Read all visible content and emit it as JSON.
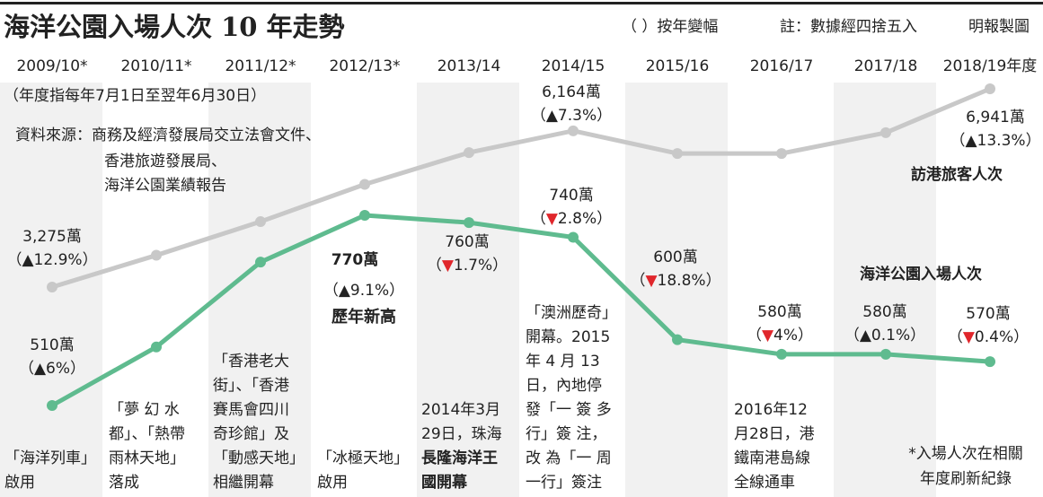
{
  "chart_data": {
    "type": "line",
    "title": "海洋公園入場人次 10 年走勢",
    "change_legend": "（ ）按年變幅",
    "note": "註：數據經四捨五入",
    "credit": "明報製圖",
    "period_note": "（年度指每年7月1日至翌年6月30日）",
    "source": [
      "資料來源：商務及經濟發展局交立法會文件、",
      "香港旅遊發展局、",
      "海洋公園業績報告"
    ],
    "categories": [
      "2009/10*",
      "2010/11*",
      "2011/12*",
      "2012/13*",
      "2013/14",
      "2014/15",
      "2015/16",
      "2016/17",
      "2017/18",
      "2018/19年度"
    ],
    "series": [
      {
        "name": "訪港旅客人次",
        "color": "#c8c8c8",
        "values": [
          3275,
          3863,
          4485,
          5175,
          5762,
          6164,
          5745,
          5745,
          6130,
          6941
        ],
        "value_labels": [
          "3,275萬",
          null,
          null,
          null,
          null,
          "6,164萬",
          null,
          null,
          null,
          "6,941萬"
        ],
        "change_labels": [
          "（▲12.9%）",
          null,
          null,
          null,
          null,
          "（▲7.3%）",
          null,
          null,
          null,
          "（▲13.3%）"
        ]
      },
      {
        "name": "海洋公園入場人次",
        "color": "#5fbb8f",
        "values": [
          510,
          590,
          706,
          770,
          760,
          740,
          600,
          580,
          580,
          570
        ],
        "value_labels": [
          "510萬",
          null,
          null,
          "770萬",
          "760萬",
          "740萬",
          "600萬",
          "580萬",
          "580萬",
          "570萬"
        ],
        "change_labels": [
          "（▲6%）",
          null,
          null,
          "（▲9.1%）",
          "（▼1.7%）",
          "（▼2.8%）",
          "（▼18.8%）",
          "（▼4%）",
          "（▲0.1%）",
          "（▼0.4%）"
        ]
      }
    ],
    "record_note": "歷年新高",
    "annotations": [
      [
        "「海洋列車」",
        "啟用"
      ],
      [
        "「夢 幻 水",
        "都」、「熱帶",
        "雨林天地」",
        "落成"
      ],
      [
        "「香港老大",
        "街」、「香港",
        "賽馬會四川",
        "奇珍館」及",
        "「動感天地」",
        "相繼開幕"
      ],
      [
        "「冰極天地」",
        "啟用"
      ],
      [
        "2014年3月",
        "29日，珠海",
        "長隆海洋王",
        "國開幕"
      ],
      [
        "「澳洲歷奇」",
        "開幕。2015",
        "年 4 月 13",
        "日，內地停",
        "發「一 簽 多",
        "行」簽 注，",
        "改 為「一 周",
        "一行」簽注"
      ],
      null,
      [
        "2016年12",
        "月28日，港",
        "鐵南港島線",
        "全線通車"
      ],
      null,
      null
    ],
    "footnote": [
      "*入場人次在相關",
      "年度刷新紀錄"
    ]
  }
}
